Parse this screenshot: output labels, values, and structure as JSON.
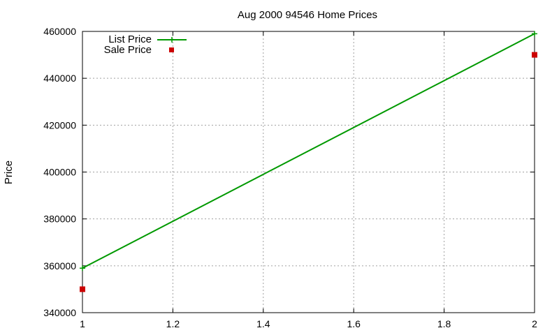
{
  "chart_data": {
    "type": "line",
    "title": "Aug 2000 94546 Home Prices",
    "xlabel": "",
    "ylabel": "Price",
    "xlim": [
      1,
      2
    ],
    "ylim": [
      340000,
      460000
    ],
    "x_ticks": [
      1,
      1.2,
      1.4,
      1.6,
      1.8,
      2
    ],
    "x_tick_labels": [
      "1",
      "1.2",
      "1.4",
      "1.6",
      "1.8",
      "2"
    ],
    "y_ticks": [
      340000,
      360000,
      380000,
      400000,
      420000,
      440000,
      460000
    ],
    "y_tick_labels": [
      "340000",
      "360000",
      "380000",
      "400000",
      "420000",
      "440000",
      "460000"
    ],
    "grid": true,
    "legend_position": "top-left",
    "series": [
      {
        "name": "List Price",
        "style": "linespoints",
        "color": "#009900",
        "x": [
          1,
          2
        ],
        "y": [
          359000,
          459000
        ]
      },
      {
        "name": "Sale Price",
        "style": "points",
        "color": "#cc0000",
        "x": [
          1,
          2
        ],
        "y": [
          350000,
          450000
        ]
      }
    ]
  }
}
